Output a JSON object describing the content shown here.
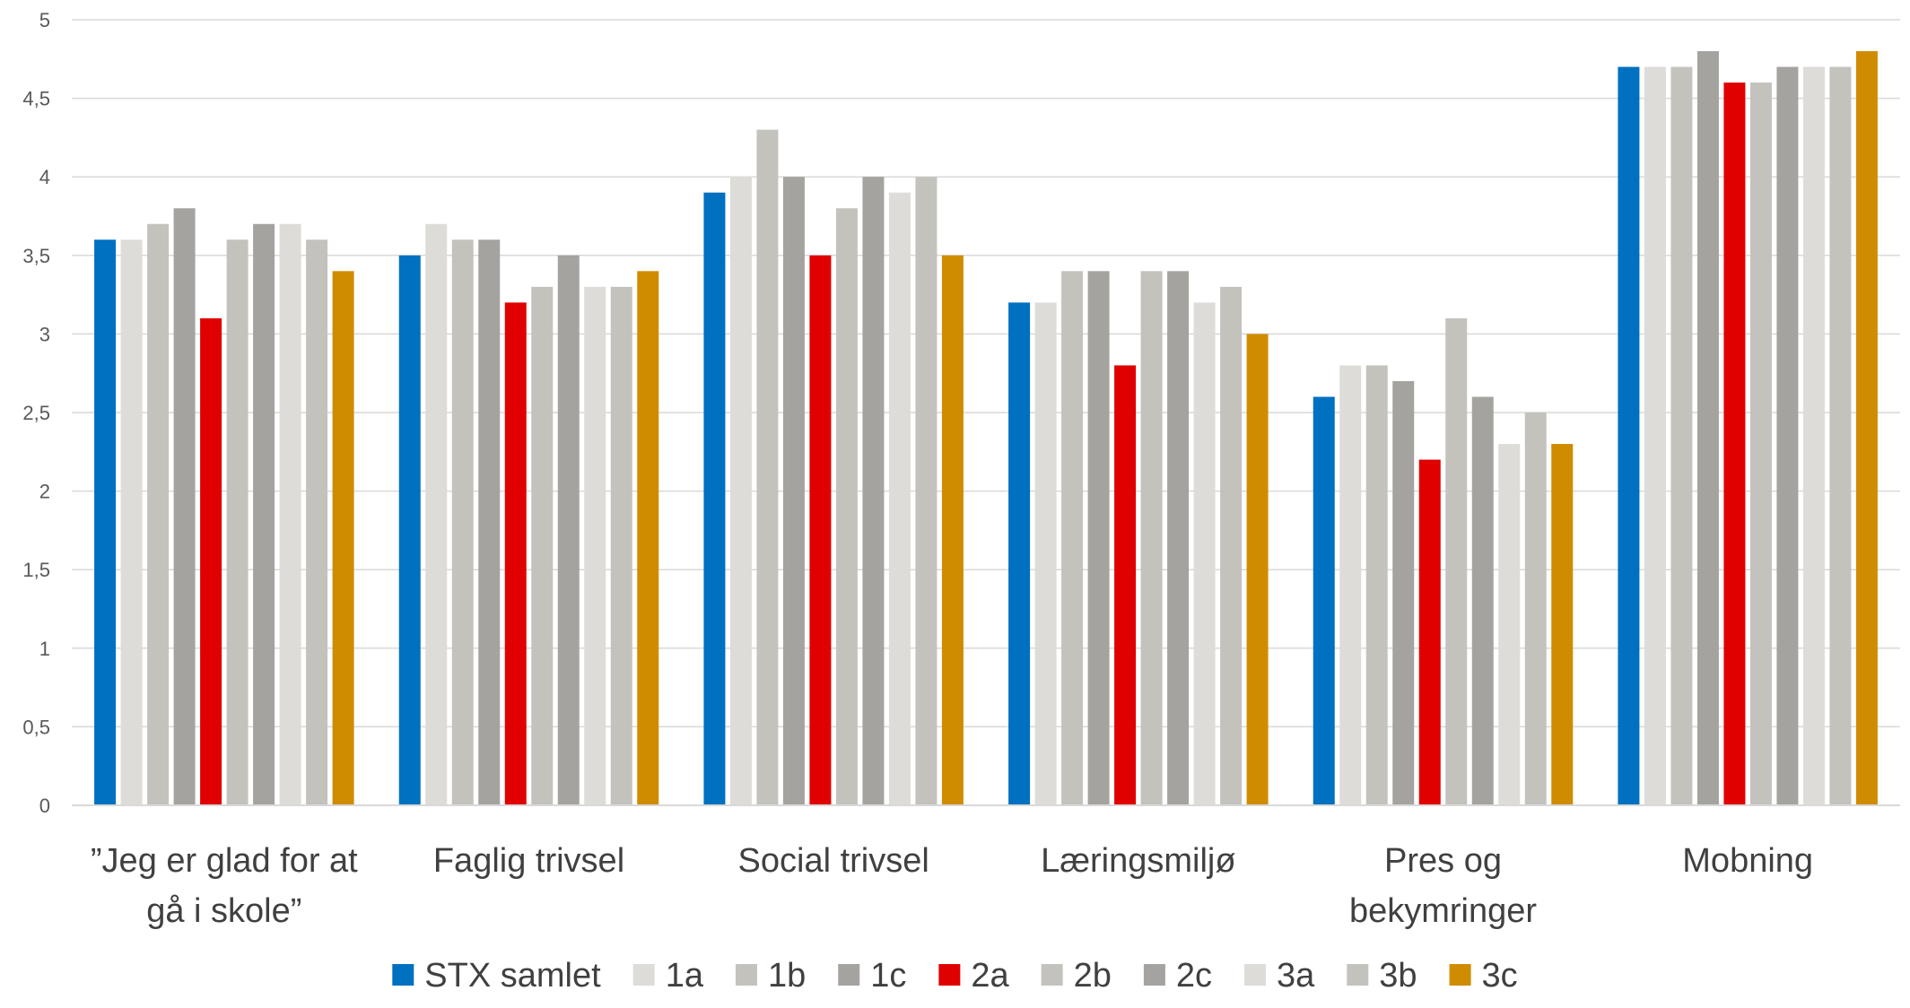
{
  "chart_data": {
    "type": "bar",
    "title": "",
    "xlabel": "",
    "ylabel": "",
    "ylim": [
      0,
      5
    ],
    "yticks": [
      0,
      0.5,
      1,
      1.5,
      2,
      2.5,
      3,
      3.5,
      4,
      4.5,
      5
    ],
    "ytick_labels": [
      "0",
      "0,5",
      "1",
      "1,5",
      "2",
      "2,5",
      "3",
      "3,5",
      "4",
      "4,5",
      "5"
    ],
    "grid": true,
    "legend_position": "bottom",
    "categories": [
      [
        "”Jeg er glad for at",
        "gå i skole”"
      ],
      [
        "Faglig trivsel"
      ],
      [
        "Social trivsel"
      ],
      [
        "Læringsmiljø"
      ],
      [
        "Pres og",
        "bekymringer"
      ],
      [
        "Mobning"
      ]
    ],
    "series": [
      {
        "name": "STX samlet",
        "color": "#0070C0",
        "values": [
          3.6,
          3.5,
          3.9,
          3.2,
          2.6,
          4.7
        ]
      },
      {
        "name": "1a",
        "color": "#DEDCD8",
        "values": [
          3.6,
          3.7,
          4.0,
          3.2,
          2.8,
          4.7
        ]
      },
      {
        "name": "1b",
        "color": "#C4C2BD",
        "values": [
          3.7,
          3.6,
          4.3,
          3.4,
          2.8,
          4.7
        ]
      },
      {
        "name": "1c",
        "color": "#A5A3A0",
        "values": [
          3.8,
          3.6,
          4.0,
          3.4,
          2.7,
          4.8
        ]
      },
      {
        "name": "2a",
        "color": "#E00000",
        "values": [
          3.1,
          3.2,
          3.5,
          2.8,
          2.2,
          4.6
        ]
      },
      {
        "name": "2b",
        "color": "#C4C2BD",
        "values": [
          3.6,
          3.3,
          3.8,
          3.4,
          3.1,
          4.6
        ]
      },
      {
        "name": "2c",
        "color": "#A5A3A0",
        "values": [
          3.7,
          3.5,
          4.0,
          3.4,
          2.6,
          4.7
        ]
      },
      {
        "name": "3a",
        "color": "#DEDCD8",
        "values": [
          3.7,
          3.3,
          3.9,
          3.2,
          2.3,
          4.7
        ]
      },
      {
        "name": "3b",
        "color": "#C4C2BD",
        "values": [
          3.6,
          3.3,
          4.0,
          3.3,
          2.5,
          4.7
        ]
      },
      {
        "name": "3c",
        "color": "#D08C00",
        "values": [
          3.4,
          3.4,
          3.5,
          3.0,
          2.3,
          4.8
        ]
      }
    ]
  }
}
